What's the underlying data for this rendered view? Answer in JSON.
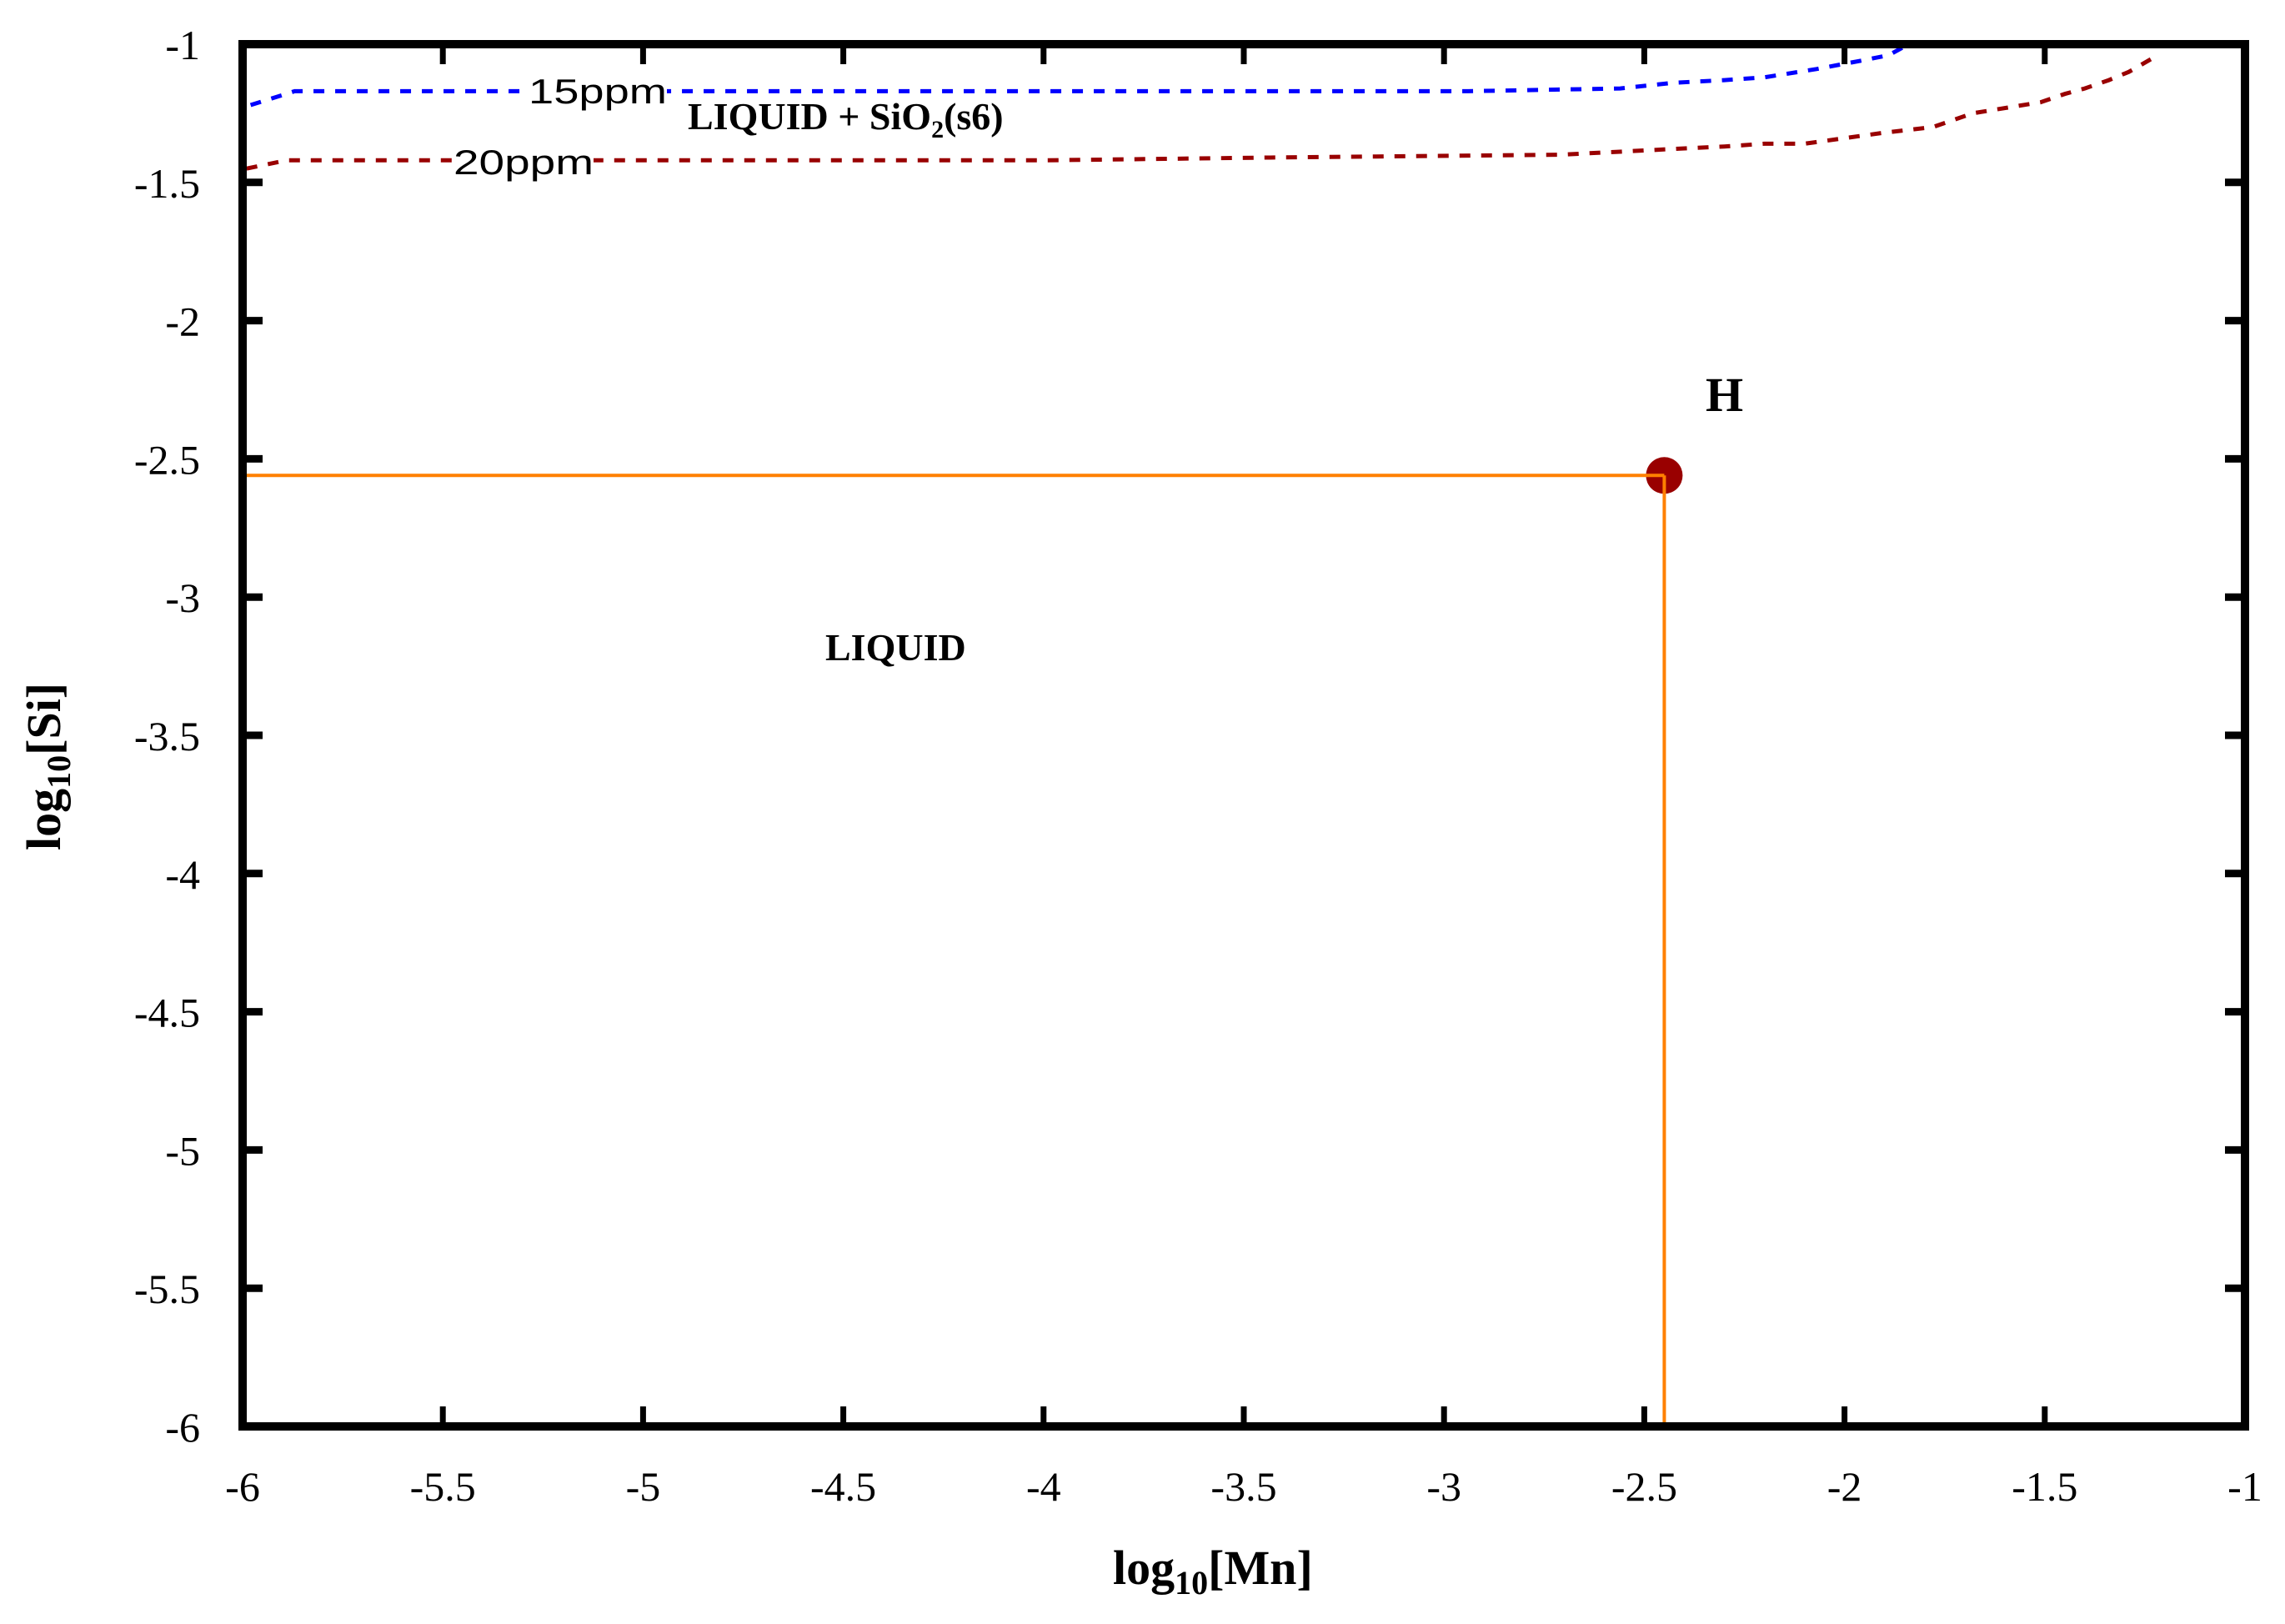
{
  "chart_data": {
    "type": "line",
    "title": "",
    "xlabel": "log10[Mn]",
    "ylabel": "log10[Si]",
    "xlabel_parts": {
      "prefix": "log",
      "sub": "10",
      "suffix": "[Mn]"
    },
    "ylabel_parts": {
      "prefix": "log",
      "sub": "10",
      "suffix": "[Si]"
    },
    "xlim": [
      -6,
      -1
    ],
    "ylim": [
      -6,
      -1
    ],
    "xticks": [
      -6,
      -5.5,
      -5,
      -4.5,
      -4,
      -3.5,
      -3,
      -2.5,
      -2,
      -1.5,
      -1
    ],
    "xtick_labels": [
      "-6",
      "-5.5",
      "-5",
      "-4.5",
      "-4",
      "-3.5",
      "-3",
      "-2.5",
      "-2",
      "-1.5",
      "-1"
    ],
    "yticks": [
      -1,
      -1.5,
      -2,
      -2.5,
      -3,
      -3.5,
      -4,
      -4.5,
      -5,
      -5.5,
      -6
    ],
    "ytick_labels": [
      "-1",
      "-1.5",
      "-2",
      "-2.5",
      "-3",
      "-3.5",
      "-4",
      "-4.5",
      "-5",
      "-5.5",
      "-6"
    ],
    "grid": false,
    "legend": null,
    "series": [
      {
        "name": "15ppm",
        "style": "dashed",
        "color": "#0000ff",
        "x": [
          -5.98,
          -5.87,
          -5.5,
          -5.0,
          -4.5,
          -4.0,
          -3.5,
          -2.94,
          -2.56,
          -2.43,
          -2.3,
          -2.2,
          -2.07,
          -1.96,
          -1.89,
          -1.84
        ],
        "y": [
          -1.22,
          -1.17,
          -1.17,
          -1.17,
          -1.17,
          -1.17,
          -1.17,
          -1.17,
          -1.16,
          -1.14,
          -1.13,
          -1.12,
          -1.09,
          -1.06,
          -1.04,
          -1.0
        ]
      },
      {
        "name": "20ppm",
        "style": "dashed",
        "color": "#990000",
        "x": [
          -5.99,
          -5.89,
          -5.5,
          -5.0,
          -4.5,
          -4.0,
          -3.44,
          -2.71,
          -2.44,
          -2.3,
          -2.2,
          -2.1,
          -2.0,
          -1.9,
          -1.78,
          -1.68,
          -1.51,
          -1.45,
          -1.4,
          -1.34,
          -1.29,
          -1.23,
          -1.22
        ],
        "y": [
          -1.45,
          -1.42,
          -1.42,
          -1.42,
          -1.42,
          -1.42,
          -1.41,
          -1.4,
          -1.38,
          -1.37,
          -1.36,
          -1.36,
          -1.34,
          -1.32,
          -1.3,
          -1.25,
          -1.21,
          -1.18,
          -1.16,
          -1.13,
          -1.1,
          -1.05,
          -1.05
        ]
      }
    ],
    "points": [
      {
        "label": "H",
        "x": -2.45,
        "y": -2.56,
        "color": "#990000"
      }
    ],
    "reference_lines": [
      {
        "type": "horizontal",
        "y": -2.56,
        "x_from": -6,
        "x_to": -2.45,
        "color": "#ff8000"
      },
      {
        "type": "vertical",
        "x": -2.45,
        "y_from": -6,
        "y_to": -2.56,
        "color": "#ff8000"
      }
    ],
    "annotations": [
      {
        "text": "LIQUID",
        "x": -4.4,
        "y": -3.18
      },
      {
        "text": "LIQUID + SiO2(s6)",
        "x": -4.15,
        "y": -1.27
      },
      {
        "text": "15ppm",
        "x": -4.85,
        "y": -1.17
      },
      {
        "text": "20ppm",
        "x": -5.05,
        "y": -1.43
      }
    ]
  },
  "labels": {
    "region_liquid": "LIQUID",
    "region_liquid_sio2_prefix": "LIQUID + SiO",
    "region_liquid_sio2_sub": "2",
    "region_liquid_sio2_suffix": "(s6)",
    "curve_15": "15ppm",
    "curve_20": "20ppm",
    "point_h": "H"
  },
  "colors": {
    "curve_15": "#0000ff",
    "curve_20": "#990000",
    "point": "#990000",
    "guide": "#ff8000",
    "axes": "#000000"
  }
}
